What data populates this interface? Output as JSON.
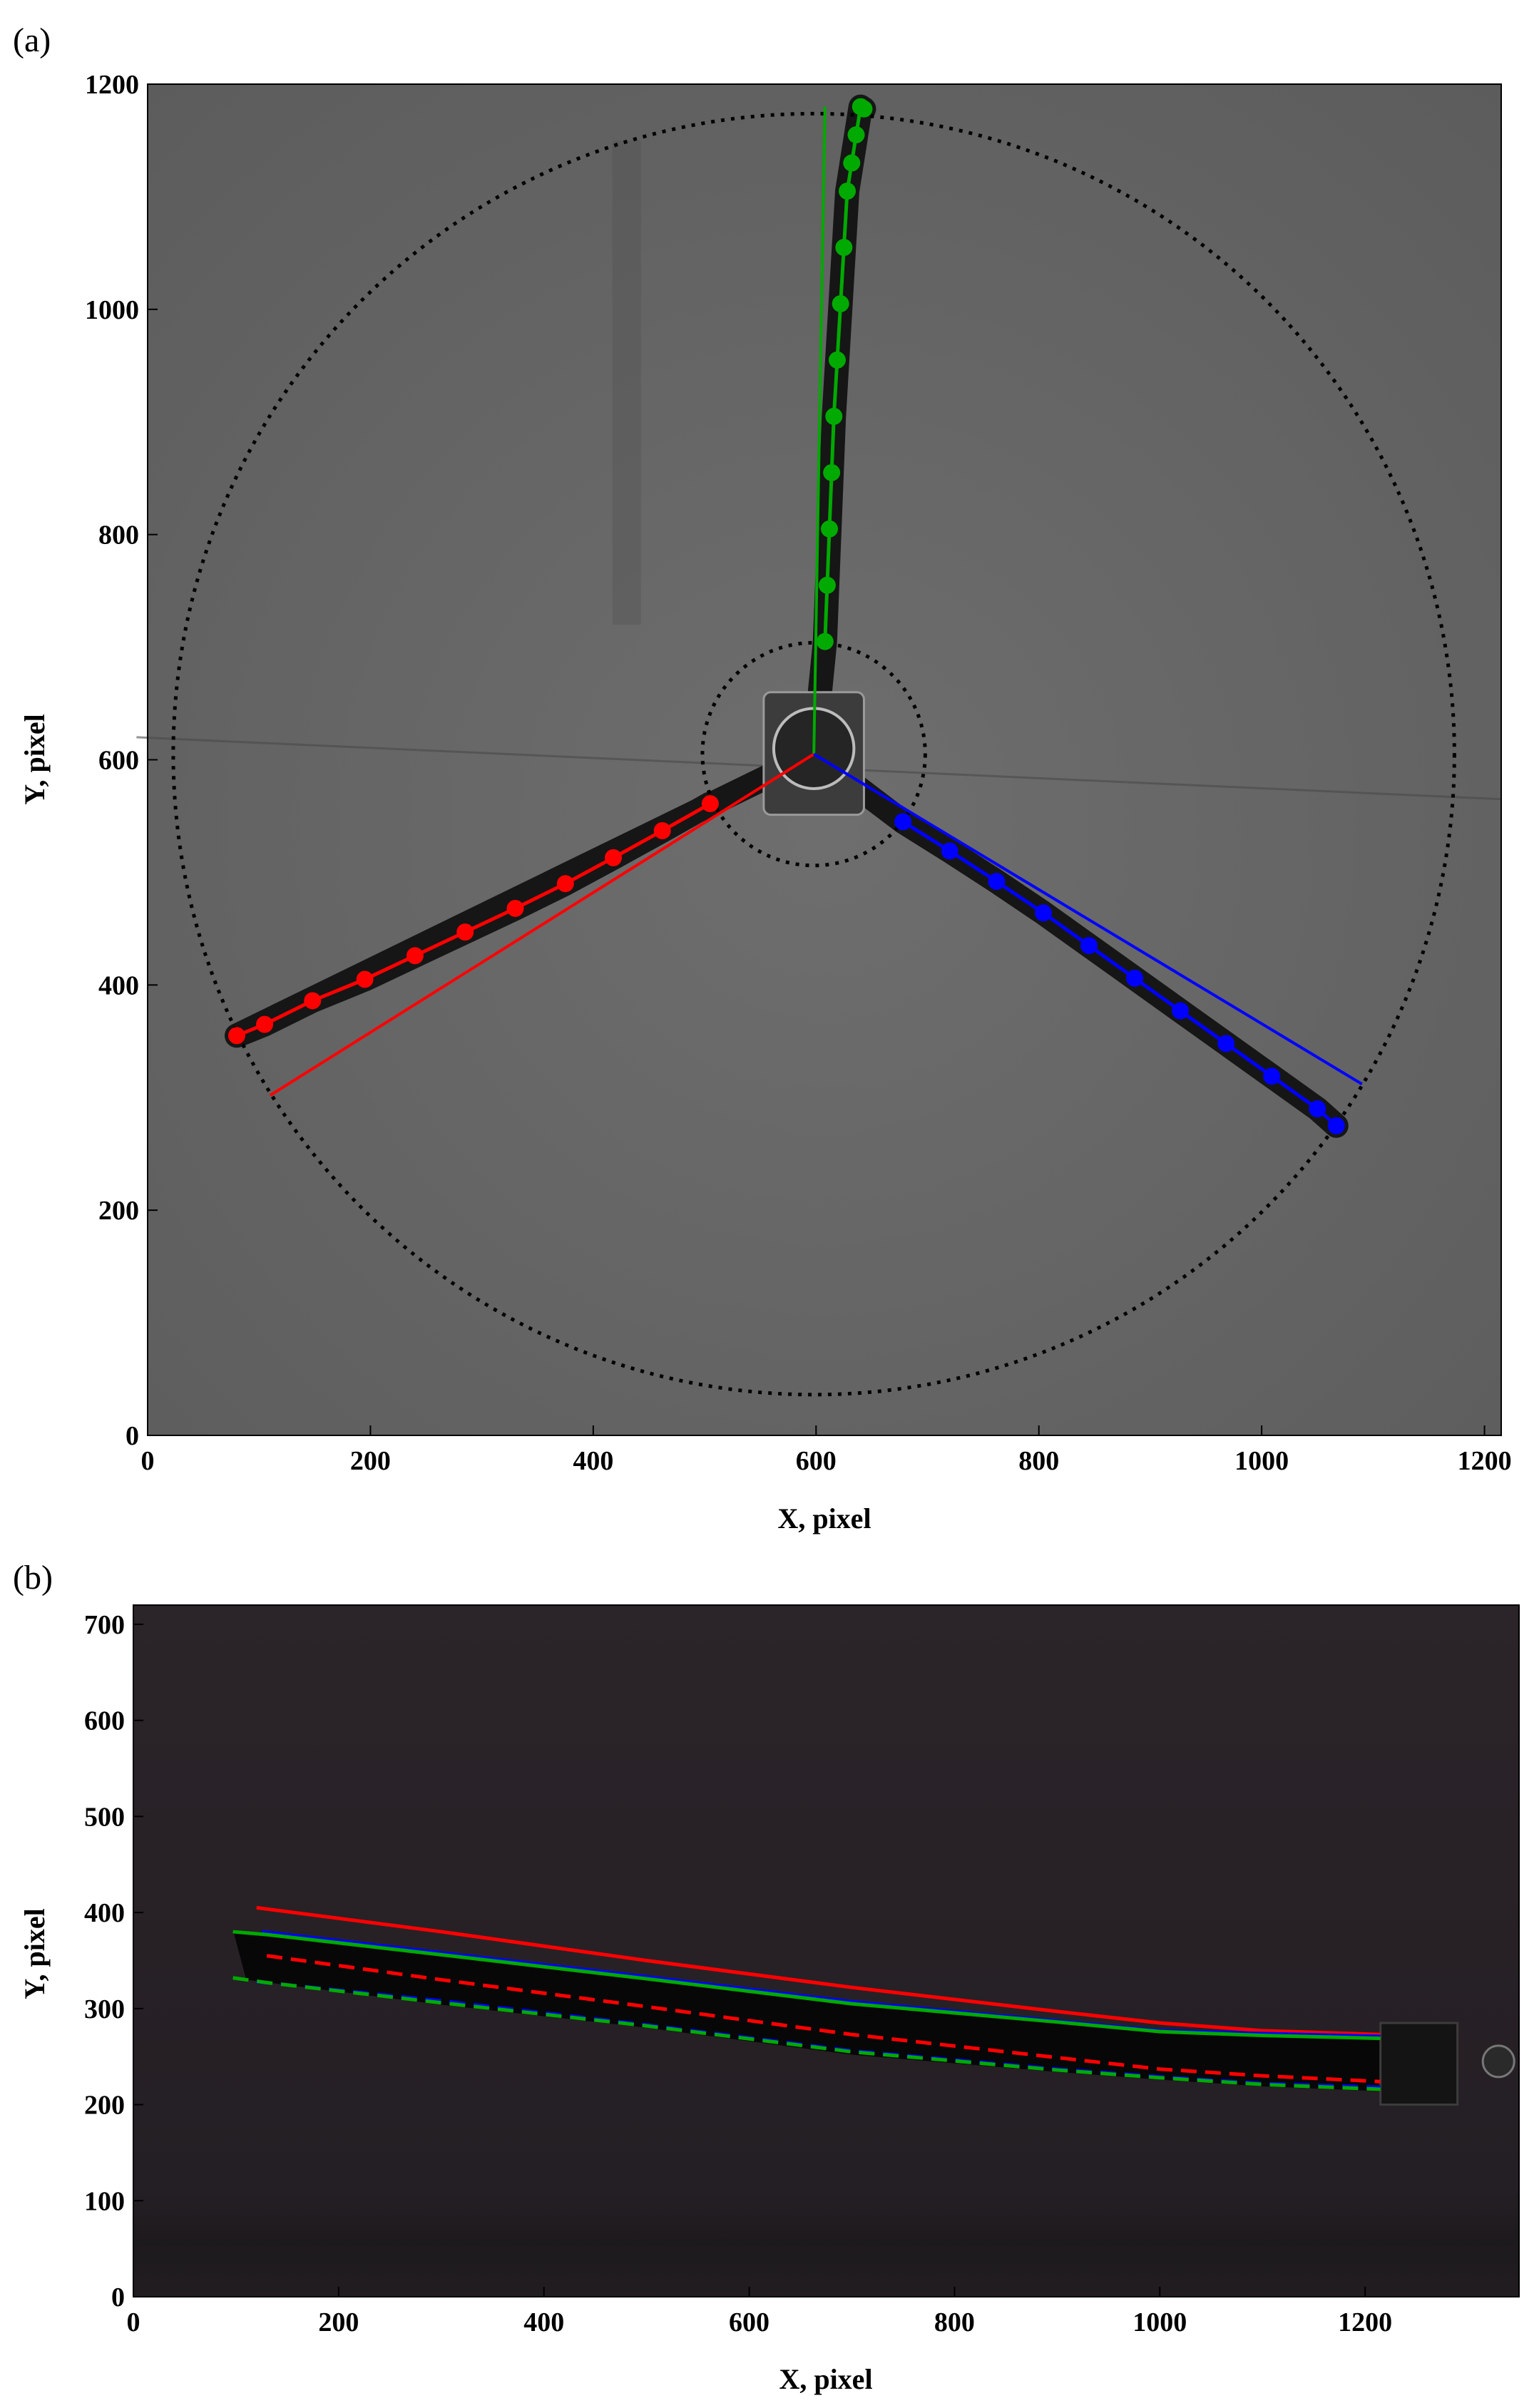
{
  "chart_data": [
    {
      "panel": "(a)",
      "type": "scatter",
      "xlabel": "X, pixel",
      "ylabel": "Y, pixel",
      "xlim": [
        0,
        1215
      ],
      "ylim": [
        0,
        1200
      ],
      "xticks": [
        0,
        200,
        400,
        600,
        800,
        1000,
        1200
      ],
      "yticks": [
        0,
        200,
        400,
        600,
        800,
        1000,
        1200
      ],
      "background": "grayscale photo of three-blade rotor, top view",
      "guides": {
        "outer_circle": {
          "center": [
            598,
            605
          ],
          "radius": 575,
          "style": "dotted",
          "color": "#000000"
        },
        "inner_circle": {
          "center": [
            598,
            605
          ],
          "radius": 100,
          "style": "dotted",
          "color": "#000000"
        }
      },
      "reference_lines": [
        {
          "color": "#00aa00",
          "x": [
            598,
            608
          ],
          "y": [
            605,
            1180
          ]
        },
        {
          "color": "#ff0000",
          "x": [
            598,
            110
          ],
          "y": [
            605,
            302
          ]
        },
        {
          "color": "#0000ff",
          "x": [
            598,
            1090
          ],
          "y": [
            605,
            312
          ]
        }
      ],
      "series": [
        {
          "color": "#00aa00",
          "x": [
            608,
            610,
            612,
            614,
            616,
            619,
            622,
            625,
            628,
            632,
            636,
            640,
            643
          ],
          "y": [
            705,
            755,
            805,
            855,
            905,
            955,
            1005,
            1055,
            1105,
            1130,
            1155,
            1180,
            1178
          ],
          "fit": true
        },
        {
          "color": "#ff0000",
          "x": [
            80,
            105,
            148,
            195,
            240,
            285,
            330,
            375,
            418,
            462,
            505
          ],
          "y": [
            355,
            365,
            386,
            405,
            426,
            447,
            468,
            490,
            513,
            537,
            561
          ],
          "fit": true
        },
        {
          "color": "#0000ff",
          "x": [
            678,
            720,
            762,
            804,
            845,
            886,
            927,
            968,
            1009,
            1050,
            1067
          ],
          "y": [
            545,
            519,
            492,
            464,
            435,
            406,
            377,
            348,
            319,
            290,
            275
          ],
          "fit": true
        }
      ]
    },
    {
      "panel": "(b)",
      "type": "line",
      "xlabel": "X, pixel",
      "ylabel": "Y, pixel",
      "xlim": [
        0,
        1350
      ],
      "ylim": [
        0,
        720
      ],
      "xticks": [
        0,
        200,
        400,
        600,
        800,
        1000,
        1200
      ],
      "yticks": [
        0,
        100,
        200,
        300,
        400,
        500,
        600,
        700
      ],
      "background": "dark photo of rotor blade, side view",
      "series": [
        {
          "color": "#ff0000",
          "style": "solid",
          "x": [
            120,
            300,
            500,
            700,
            900,
            1000,
            1100,
            1215
          ],
          "y": [
            405,
            380,
            350,
            322,
            297,
            285,
            277,
            273
          ]
        },
        {
          "color": "#0000ff",
          "style": "solid",
          "x": [
            125,
            300,
            500,
            700,
            900,
            1000,
            1100,
            1215
          ],
          "y": [
            380,
            358,
            333,
            307,
            287,
            277,
            274,
            271
          ]
        },
        {
          "color": "#00aa00",
          "style": "solid",
          "x": [
            97,
            130,
            300,
            500,
            700,
            900,
            1000,
            1100,
            1215
          ],
          "y": [
            380,
            377,
            356,
            331,
            305,
            286,
            276,
            272,
            269
          ]
        },
        {
          "color": "#ff0000",
          "style": "dashed",
          "x": [
            130,
            300,
            500,
            700,
            900,
            1000,
            1100,
            1215
          ],
          "y": [
            355,
            330,
            302,
            273,
            249,
            237,
            230,
            224
          ]
        },
        {
          "color": "#0000ff",
          "style": "dashed",
          "x": [
            120,
            300,
            500,
            700,
            900,
            1000,
            1100,
            1215
          ],
          "y": [
            328,
            308,
            283,
            256,
            237,
            229,
            222,
            218
          ]
        },
        {
          "color": "#00aa00",
          "style": "dashed",
          "x": [
            97,
            130,
            300,
            500,
            700,
            900,
            1000,
            1100,
            1215
          ],
          "y": [
            332,
            327,
            306,
            282,
            255,
            236,
            228,
            221,
            216
          ]
        }
      ]
    }
  ]
}
